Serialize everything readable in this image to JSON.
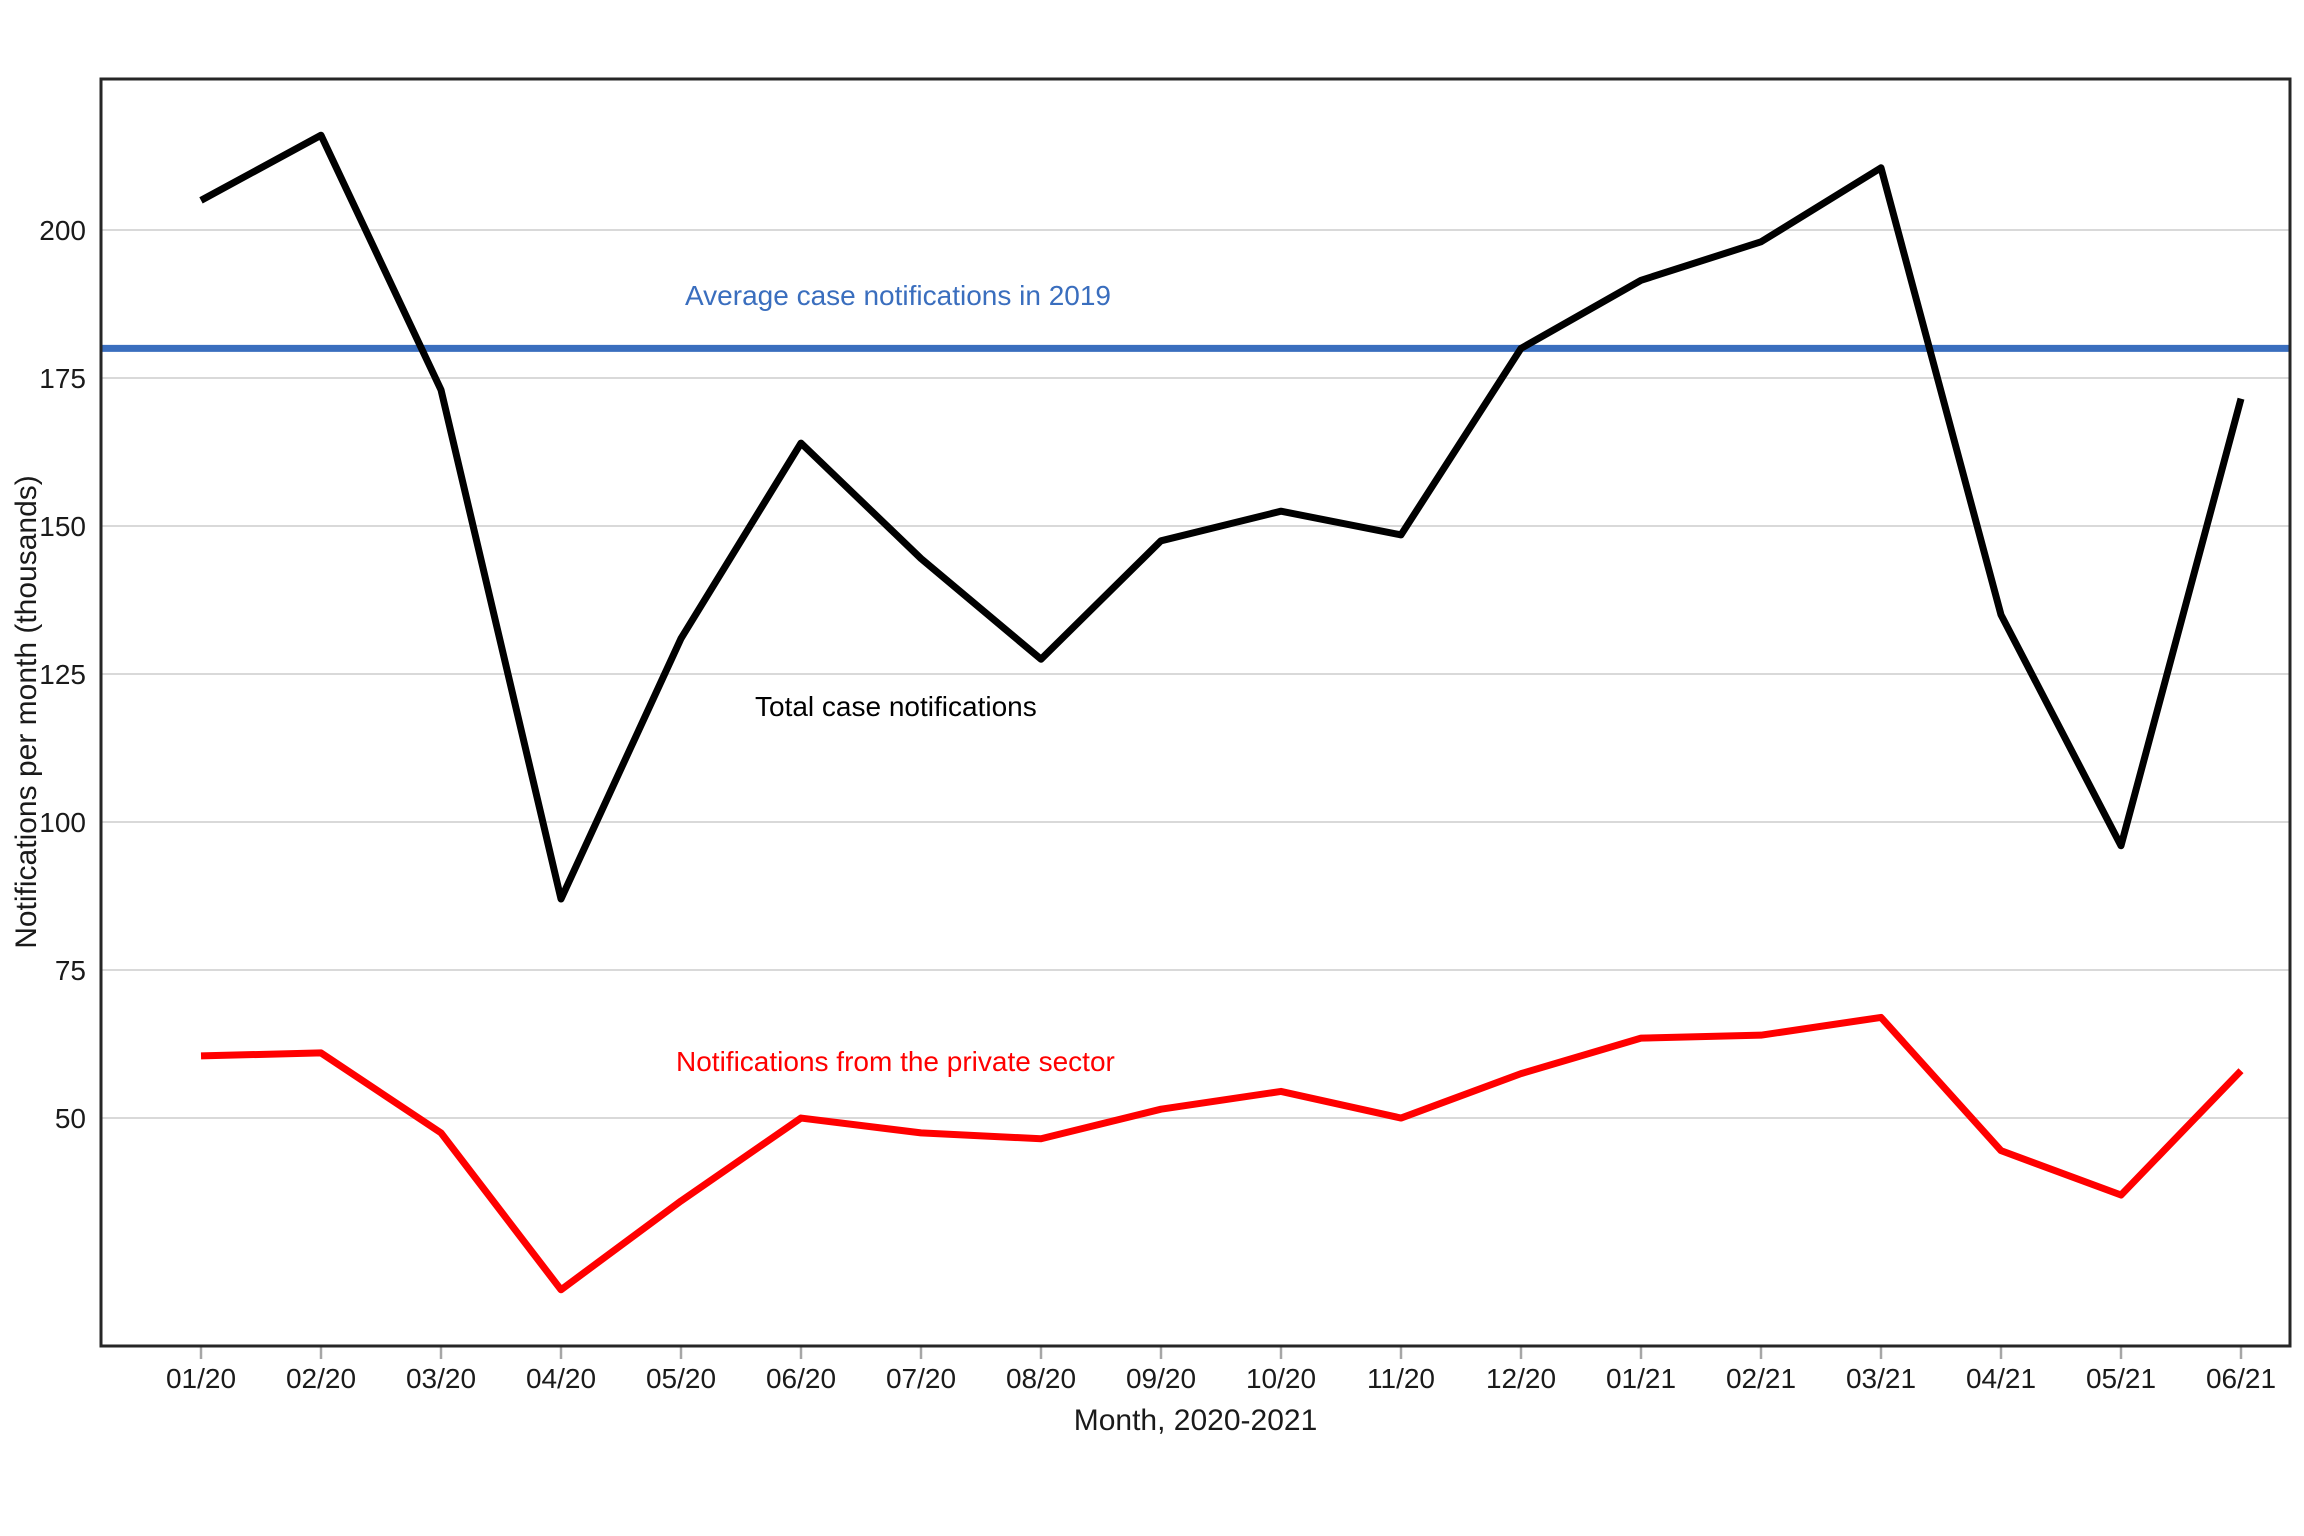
{
  "figure": {
    "x_axis_title": "Month, 2020-2021",
    "y_axis_title": "Notifications per month (thousands)",
    "annotations": {
      "average_line_label": "Average case notifications in 2019",
      "total_line_label": "Total case notifications",
      "private_line_label": "Notifications from the private sector"
    },
    "colors": {
      "total": "#000000",
      "private": "#ff0000",
      "average": "#3a6ebe",
      "gridline": "#d9d9d9",
      "axis": "#262626",
      "tick": "#a6a6a6",
      "label": "#1a1a1a"
    }
  },
  "chart_data": {
    "type": "line",
    "title": "",
    "xlabel": "Month, 2020-2021",
    "ylabel": "Notifications per month (thousands)",
    "grid": "horizontal",
    "x": [
      "01/20",
      "02/20",
      "03/20",
      "04/20",
      "05/20",
      "06/20",
      "07/20",
      "08/20",
      "09/20",
      "10/20",
      "11/20",
      "12/20",
      "01/21",
      "02/21",
      "03/21",
      "04/21",
      "05/21",
      "06/21"
    ],
    "y_ticks": [
      50,
      75,
      100,
      125,
      150,
      175,
      200
    ],
    "ylim": [
      11.5,
      225.5
    ],
    "series": [
      {
        "name": "Total case notifications",
        "color": "#000000",
        "values": [
          205,
          216,
          173,
          87,
          131,
          164,
          144.5,
          127.5,
          147.5,
          152.5,
          148.5,
          180,
          191.5,
          198,
          210.5,
          135,
          96,
          171.5
        ]
      },
      {
        "name": "Notifications from the private sector",
        "color": "#ff0000",
        "values": [
          60.5,
          61,
          47.5,
          21,
          36,
          50,
          47.5,
          46.5,
          51.5,
          54.5,
          50,
          57.5,
          63.5,
          64,
          67,
          44.5,
          37,
          58
        ]
      }
    ],
    "reference_line": {
      "label": "Average case notifications in 2019",
      "value": 180,
      "color": "#3a6ebe"
    },
    "legend": "labels drawn inside plot area next to lines"
  }
}
